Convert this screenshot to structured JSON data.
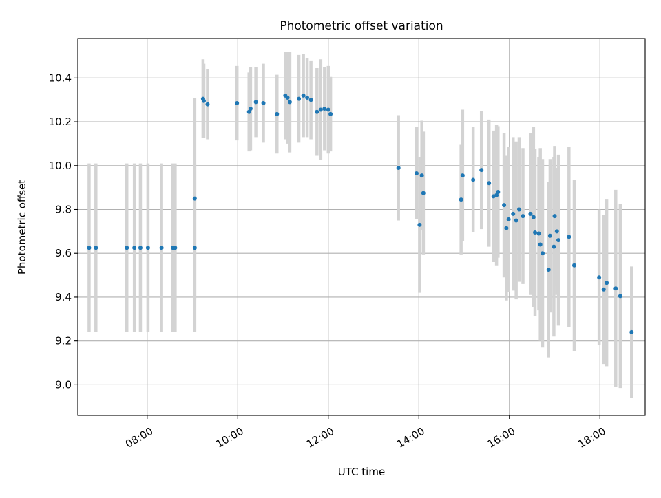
{
  "chart_data": {
    "type": "scatter",
    "title": "Photometric offset variation",
    "xlabel": "UTC time",
    "ylabel": "Photometric offset",
    "grid": true,
    "legend": "none",
    "x_unit": "UTC time",
    "xlim": [
      "06:28",
      "19:00"
    ],
    "ylim": [
      8.86,
      10.58
    ],
    "x_ticks": [
      "08:00",
      "10:00",
      "12:00",
      "14:00",
      "16:00",
      "18:00"
    ],
    "y_ticks": [
      9.0,
      9.2,
      9.4,
      9.6,
      9.8,
      10.0,
      10.2,
      10.4
    ],
    "y_tick_labels": [
      "9.0",
      "9.2",
      "9.4",
      "9.6",
      "9.8",
      "10.0",
      "10.2",
      "10.4"
    ],
    "colors": {
      "marker": "#1f77b4",
      "errorbar": "#d3d3d3",
      "grid": "#b0b0b0"
    },
    "series": [
      {
        "x": [
          "06:43",
          "06:52",
          "07:33",
          "07:43",
          "07:51",
          "08:01",
          "08:19",
          "08:34",
          "08:37",
          "09:03",
          "09:03",
          "09:14",
          "09:15",
          "09:20",
          "09:59",
          "10:15",
          "10:17",
          "10:24",
          "10:34",
          "10:52",
          "11:03",
          "11:06",
          "11:09",
          "11:21",
          "11:27",
          "11:32",
          "11:37",
          "11:45",
          "11:50",
          "11:55",
          "12:00",
          "12:03",
          "13:33",
          "13:57",
          "14:01",
          "14:04",
          "14:06",
          "14:56",
          "14:58",
          "15:12",
          "15:23",
          "15:33",
          "15:39",
          "15:43",
          "15:45",
          "15:53",
          "15:56",
          "15:59",
          "16:05",
          "16:09",
          "16:13",
          "16:18",
          "16:28",
          "16:32",
          "16:34",
          "16:39",
          "16:41",
          "16:44",
          "16:52",
          "16:54",
          "16:59",
          "17:00",
          "17:03",
          "17:05",
          "17:19",
          "17:26",
          "17:59",
          "18:05",
          "18:09",
          "18:21",
          "18:27"
        ],
        "y": [
          9.625,
          9.625,
          9.625,
          9.625,
          9.625,
          9.625,
          9.625,
          9.625,
          9.625,
          9.625,
          9.85,
          10.305,
          10.295,
          10.28,
          10.285,
          10.245,
          10.26,
          10.29,
          10.285,
          10.235,
          10.32,
          10.31,
          10.29,
          10.305,
          10.32,
          10.31,
          10.3,
          10.245,
          10.255,
          10.26,
          10.255,
          10.235,
          9.99,
          9.965,
          9.73,
          9.955,
          9.875,
          9.845,
          9.955,
          9.935,
          9.98,
          9.92,
          9.86,
          9.865,
          9.88,
          9.82,
          9.715,
          9.755,
          9.78,
          9.75,
          9.8,
          9.77,
          9.78,
          9.765,
          9.695,
          9.69,
          9.64,
          9.6,
          9.525,
          9.68,
          9.63,
          9.77,
          9.7,
          9.66,
          9.675,
          9.545,
          9.49,
          9.435,
          9.465,
          9.44,
          9.405
        ],
        "yerr": [
          0.385,
          0.385,
          0.385,
          0.385,
          0.385,
          0.385,
          0.385,
          0.385,
          0.385,
          0.385,
          0.46,
          0.18,
          0.17,
          0.16,
          0.17,
          0.18,
          0.19,
          0.16,
          0.18,
          0.18,
          0.2,
          0.21,
          0.23,
          0.2,
          0.19,
          0.18,
          0.18,
          0.2,
          0.23,
          0.19,
          0.2,
          0.17,
          0.24,
          0.21,
          0.31,
          0.25,
          0.28,
          0.25,
          0.3,
          0.24,
          0.27,
          0.29,
          0.3,
          0.32,
          0.3,
          0.33,
          0.33,
          0.33,
          0.35,
          0.36,
          0.33,
          0.31,
          0.37,
          0.41,
          0.38,
          0.35,
          0.44,
          0.43,
          0.4,
          0.35,
          0.41,
          0.32,
          0.29,
          0.39,
          0.41,
          0.39,
          0.31,
          0.34,
          0.38,
          0.45,
          0.42
        ]
      },
      {
        "x": [
          "18:42"
        ],
        "y": [
          9.24
        ],
        "yerr": [
          0.3
        ]
      }
    ]
  }
}
